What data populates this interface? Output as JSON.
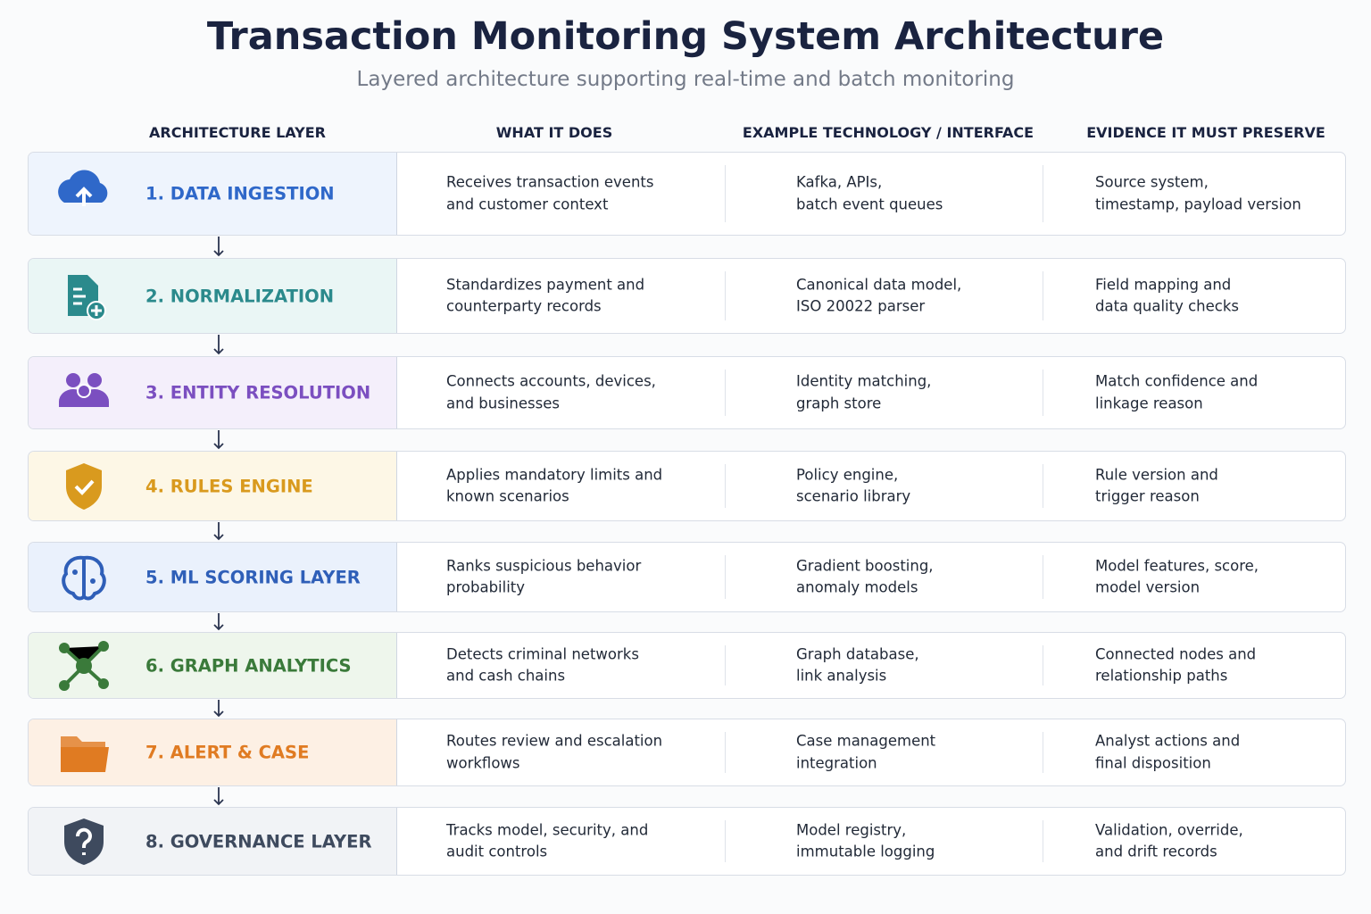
{
  "header": {
    "title": "Transaction Monitoring System Architecture",
    "subtitle": "Layered architecture supporting real-time and batch monitoring"
  },
  "table": {
    "columns": [
      "ARCHITECTURE LAYER",
      "WHAT IT DOES",
      "EXAMPLE TECHNOLOGY / INTERFACE",
      "EVIDENCE IT MUST PRESERVE"
    ],
    "rows": [
      {
        "layer": "1. DATA INGESTION",
        "does": [
          "Receives transaction events",
          "and customer context"
        ],
        "tech": [
          "Kafka, APIs,",
          "batch event queues"
        ],
        "evidence": [
          "Source system,",
          "timestamp, payload version"
        ]
      },
      {
        "layer": "2. NORMALIZATION",
        "does": [
          "Standardizes payment and",
          "counterparty records"
        ],
        "tech": [
          "Canonical data model,",
          "ISO 20022 parser"
        ],
        "evidence": [
          "Field mapping and",
          "data quality checks"
        ]
      },
      {
        "layer": "3. ENTITY RESOLUTION",
        "does": [
          "Connects accounts, devices,",
          "and businesses"
        ],
        "tech": [
          "Identity matching,",
          "graph store"
        ],
        "evidence": [
          "Match confidence and",
          "linkage reason"
        ]
      },
      {
        "layer": "4. RULES ENGINE",
        "does": [
          "Applies mandatory limits and",
          "known scenarios"
        ],
        "tech": [
          "Policy engine,",
          "scenario library"
        ],
        "evidence": [
          "Rule version and",
          "trigger reason"
        ]
      },
      {
        "layer": "5. ML SCORING LAYER",
        "does": [
          "Ranks suspicious behavior",
          "probability"
        ],
        "tech": [
          "Gradient boosting,",
          "anomaly models"
        ],
        "evidence": [
          "Model features, score,",
          "model version"
        ]
      },
      {
        "layer": "6. GRAPH ANALYTICS",
        "does": [
          "Detects criminal networks",
          "and cash chains"
        ],
        "tech": [
          "Graph database,",
          "link analysis"
        ],
        "evidence": [
          "Connected nodes and",
          "relationship paths"
        ]
      },
      {
        "layer": "7. ALERT & CASE",
        "does": [
          "Routes review and escalation",
          "workflows"
        ],
        "tech": [
          "Case management",
          "integration"
        ],
        "evidence": [
          "Analyst actions and",
          "final disposition"
        ]
      },
      {
        "layer": "8. GOVERNANCE LAYER",
        "does": [
          "Tracks model, security, and",
          "audit controls"
        ],
        "tech": [
          "Model registry,",
          "immutable logging"
        ],
        "evidence": [
          "Validation, override,",
          "and drift records"
        ]
      }
    ]
  }
}
